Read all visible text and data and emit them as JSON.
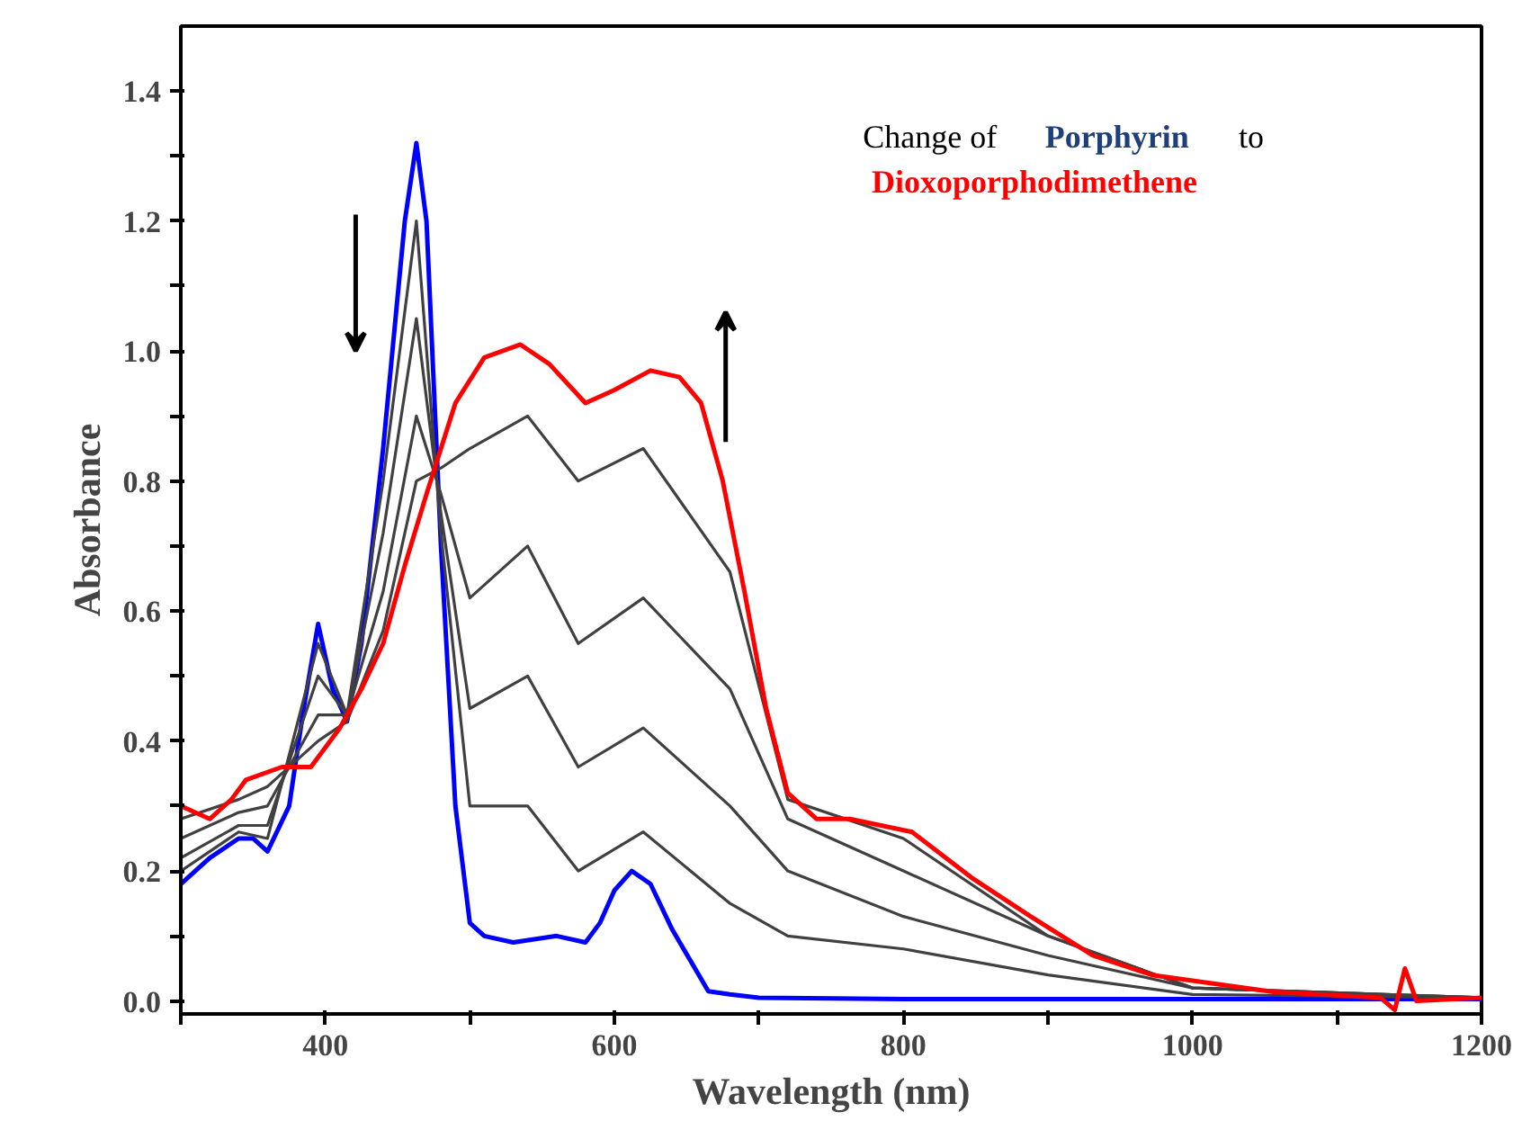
{
  "chart_data": {
    "type": "line",
    "xlabel": "Wavelength (nm)",
    "ylabel": "Absorbance",
    "annotations": [
      "Change of",
      "Porphyrin",
      "to",
      "Dioxoporphodimethene"
    ],
    "xlim": [
      300,
      1200
    ],
    "ylim": [
      -0.02,
      1.5
    ],
    "xticks": [
      {
        "value": 300,
        "label": null
      },
      400,
      {
        "value": 500,
        "label": null
      },
      600,
      {
        "value": 700,
        "label": null
      },
      800,
      {
        "value": 900,
        "label": null
      },
      1000,
      {
        "value": 1100,
        "label": null
      },
      1200
    ],
    "yticks": [
      "0.0",
      {
        "value": 0.1,
        "label": null
      },
      {
        "value": 0.2,
        "label": "0.2"
      },
      {
        "value": 0.3,
        "label": null
      },
      {
        "value": 0.4,
        "label": "0.4"
      },
      {
        "value": 0.5,
        "label": null
      },
      {
        "value": 0.6,
        "label": "0.6"
      },
      {
        "value": 0.7,
        "label": null
      },
      {
        "value": 0.8,
        "label": "0.8"
      },
      {
        "value": 0.9,
        "label": null
      },
      {
        "value": 1.0,
        "label": "1.0"
      },
      {
        "value": 1.1,
        "label": null
      },
      {
        "value": 1.2,
        "label": "1.2"
      },
      {
        "value": 1.3,
        "label": null
      },
      {
        "value": 1.4,
        "label": "1.4"
      }
    ],
    "grid": false,
    "marker": "none",
    "line_style": "solid",
    "series": [
      {
        "color": "#0000ff",
        "x": [
          300,
          320,
          340,
          350,
          360,
          375,
          385,
          395,
          405,
          415,
          425,
          440,
          455,
          463,
          470,
          480,
          490,
          500,
          510,
          530,
          560,
          580,
          590,
          600,
          612,
          625,
          640,
          665,
          680,
          700,
          800,
          1000,
          1200
        ],
        "values": [
          0.18,
          0.22,
          0.25,
          0.25,
          0.23,
          0.3,
          0.45,
          0.58,
          0.48,
          0.43,
          0.55,
          0.85,
          1.2,
          1.32,
          1.2,
          0.7,
          0.3,
          0.12,
          0.1,
          0.09,
          0.1,
          0.09,
          0.12,
          0.17,
          0.2,
          0.18,
          0.11,
          0.015,
          0.01,
          0.005,
          0.003,
          0.003,
          0.003
        ]
      },
      {
        "color": "#404040",
        "x": [
          300,
          340,
          360,
          395,
          415,
          440,
          463,
          480,
          500,
          540,
          575,
          620,
          680,
          720,
          800,
          900,
          1000,
          1200
        ],
        "values": [
          0.2,
          0.26,
          0.25,
          0.55,
          0.44,
          0.8,
          1.2,
          0.72,
          0.3,
          0.3,
          0.2,
          0.26,
          0.15,
          0.1,
          0.08,
          0.04,
          0.01,
          0.005
        ]
      },
      {
        "color": "#404040",
        "x": [
          300,
          340,
          360,
          395,
          415,
          440,
          463,
          480,
          500,
          540,
          575,
          620,
          680,
          720,
          800,
          900,
          1000,
          1200
        ],
        "values": [
          0.22,
          0.27,
          0.27,
          0.5,
          0.44,
          0.72,
          1.05,
          0.75,
          0.45,
          0.5,
          0.36,
          0.42,
          0.3,
          0.2,
          0.13,
          0.07,
          0.02,
          0.005
        ]
      },
      {
        "color": "#404040",
        "x": [
          300,
          340,
          360,
          395,
          415,
          440,
          463,
          480,
          500,
          540,
          575,
          620,
          680,
          720,
          800,
          900,
          1000,
          1200
        ],
        "values": [
          0.25,
          0.29,
          0.3,
          0.44,
          0.44,
          0.63,
          0.9,
          0.78,
          0.62,
          0.7,
          0.55,
          0.62,
          0.48,
          0.28,
          0.2,
          0.1,
          0.02,
          0.005
        ]
      },
      {
        "color": "#404040",
        "x": [
          300,
          340,
          360,
          395,
          415,
          440,
          463,
          480,
          500,
          540,
          575,
          620,
          680,
          720,
          800,
          900,
          1000,
          1200
        ],
        "values": [
          0.28,
          0.31,
          0.33,
          0.4,
          0.43,
          0.57,
          0.8,
          0.82,
          0.85,
          0.9,
          0.8,
          0.85,
          0.66,
          0.31,
          0.25,
          0.1,
          0.02,
          0.005
        ]
      },
      {
        "color": "#ff0000",
        "x": [
          300,
          320,
          335,
          345,
          370,
          390,
          410,
          425,
          440,
          455,
          470,
          490,
          510,
          535,
          555,
          580,
          600,
          625,
          645,
          660,
          675,
          690,
          705,
          720,
          740,
          763,
          806,
          847,
          888,
          931,
          972,
          1056,
          1130,
          1140,
          1147,
          1155,
          1200
        ],
        "values": [
          0.3,
          0.28,
          0.31,
          0.34,
          0.36,
          0.36,
          0.42,
          0.48,
          0.55,
          0.67,
          0.78,
          0.92,
          0.99,
          1.01,
          0.98,
          0.92,
          0.94,
          0.97,
          0.96,
          0.92,
          0.8,
          0.63,
          0.45,
          0.32,
          0.28,
          0.28,
          0.26,
          0.19,
          0.13,
          0.07,
          0.04,
          0.014,
          0.005,
          -0.014,
          0.05,
          0.0,
          0.005
        ]
      }
    ]
  }
}
